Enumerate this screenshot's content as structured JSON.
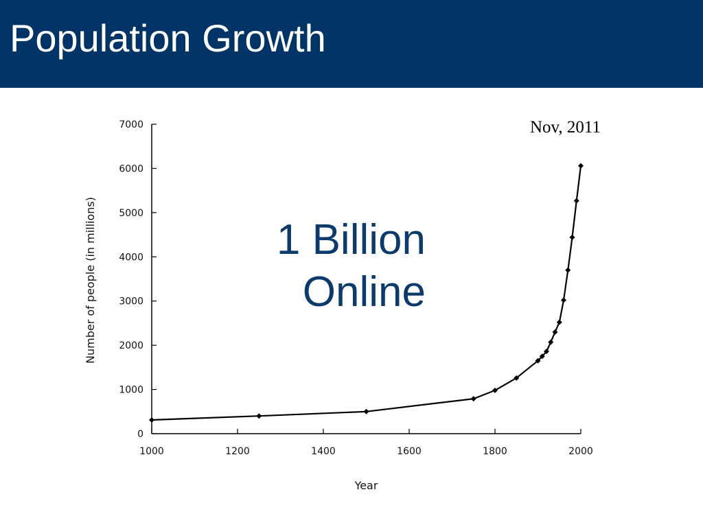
{
  "slide": {
    "title": "Population Growth",
    "overlay_lines": [
      "1 Billion",
      "Online"
    ],
    "date_note": "Nov, 2011",
    "colors": {
      "title_bar": "#003366",
      "title_text": "#ffffff",
      "overlay_text": "#0c3a6b",
      "series": "#000000"
    }
  },
  "chart_data": {
    "type": "line",
    "title": "",
    "xlabel": "Year",
    "ylabel": "Number of people (in millions)",
    "xlim": [
      1000,
      2000
    ],
    "ylim": [
      0,
      7000
    ],
    "x_ticks": [
      1000,
      1200,
      1400,
      1600,
      1800,
      2000
    ],
    "y_ticks": [
      0,
      1000,
      2000,
      3000,
      4000,
      5000,
      6000,
      7000
    ],
    "grid": false,
    "legend": "none",
    "series": [
      {
        "marker": "diamond",
        "x": [
          1000,
          1250,
          1500,
          1750,
          1800,
          1850,
          1900,
          1910,
          1920,
          1930,
          1940,
          1950,
          1960,
          1970,
          1980,
          1990,
          2000
        ],
        "y": [
          310,
          400,
          500,
          790,
          980,
          1260,
          1650,
          1750,
          1860,
          2070,
          2300,
          2520,
          3020,
          3700,
          4440,
          5270,
          6060
        ]
      }
    ]
  }
}
